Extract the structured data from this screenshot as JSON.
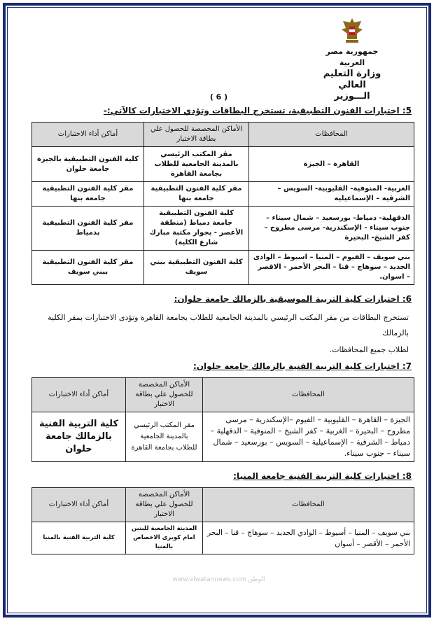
{
  "watermark": "www.elwatannews.com الوطن",
  "letterhead": {
    "lines": [
      "جمهورية مصر العربية",
      "وزارة التعليم العالي",
      "الـــوزير"
    ],
    "emblem": "eagle-emblem-icon"
  },
  "page_number": "( 6 )",
  "colors": {
    "frame": "#1a2a6e",
    "header_fill": "#d9d9d9"
  },
  "columns": {
    "governorates": "المحافظات",
    "card_places": "الأماكن المخصصة للحصول علي بطاقة الاختبار",
    "exam_places": "أماكن أداء الاختبارات"
  },
  "section5": {
    "title": "5: اختبارات الفنون التطبيقية، تستخرج البطاقات وتؤدي الاختبارات كالآتي:-",
    "rows": [
      {
        "governorates": "القاهرة – الجيزة",
        "card": "مقر المكتب الرئيسي بالمدينة الجامعية للطلاب بجامعة القاهرة",
        "exam": "كلية الفنون التطبيقية بالجيزة جامعة حلوان"
      },
      {
        "governorates": "الغربية- المنوفية- القليوبية- السويس – الشرقية – الإسماعيلية",
        "card": "مقر كلية الفنون التطبيقية جامعة بنها",
        "exam": "مقر كلية الفنون التطبيقية جامعة بنها"
      },
      {
        "governorates": "الدقهلية- دمياط- بورسعيد – شمال سيناء – جنوب سيناء - الإسكندرية- مرسى مطروح – كفر الشيخ- البحيرة",
        "card": "كلية الفنون التطبيقية جامعة دمياط (منطقة الأعصر - بجوار مكتبة مبارك شارع الكلية)",
        "exam": "مقر كلية الفنون التطبيقية بدمياط"
      },
      {
        "governorates": "بني سويف – الفيوم – المنيا – اسيوط – الوادى الجديد – سوهاج – قنا – البحر الأحمر - الاقصر – اسوان.",
        "card": "كلية الفنون التطبيقية ببني سويف",
        "exam": "مقر كلية الفنون التطبيقية ببني سويف"
      }
    ]
  },
  "section6": {
    "title": "6: اختبارات كلية التربية الموسيقية بالزمالك جامعة حلوان:",
    "text_line1": "تستخرج البطاقات من مقر المكتب الرئيسي بالمدينة الجامعية للطلاب بجامعة القاهرة وتؤدى الاختبارات بمقر الكلية بالزمالك",
    "text_line2": "لطلاب جميع المحافظات."
  },
  "section7": {
    "title": "7: اختبارات كلية التربية الفنية بالزمالك جامعة حلوان:",
    "rows": [
      {
        "governorates": "الجيزة – القاهرة – القليوبية – الفيوم –الإسكندرية – مرسى مطروح – البحيرة – الغربية – كفر الشيخ – المنوفية – الدقهلية – دمياط – الشرقية – الإسماعيلية – السويس – بورسعيد – شمال سيناء – جنوب سيناء.",
        "card": "مقر المكتب الرئيسي بالمدينة الجامعية للطلاب بجامعة القاهرة",
        "exam": "كلية التربية الفنية بالزمالك جامعة حلوان"
      }
    ]
  },
  "section8": {
    "title": "8: اختبارات كلية التربية الفنية جامعة المنيا:",
    "rows": [
      {
        "governorates": "بني سويف – المنيا – أسيوط – الوادي الجديد – سوهاج – قنا – البحر الأحمر – الأقصر – أسوان",
        "card": "المدينة الجامعية للبنين امام كوبرى الاخصاص بالمنيا",
        "exam": "كلية التربية الفنية بالمنيا"
      }
    ]
  }
}
